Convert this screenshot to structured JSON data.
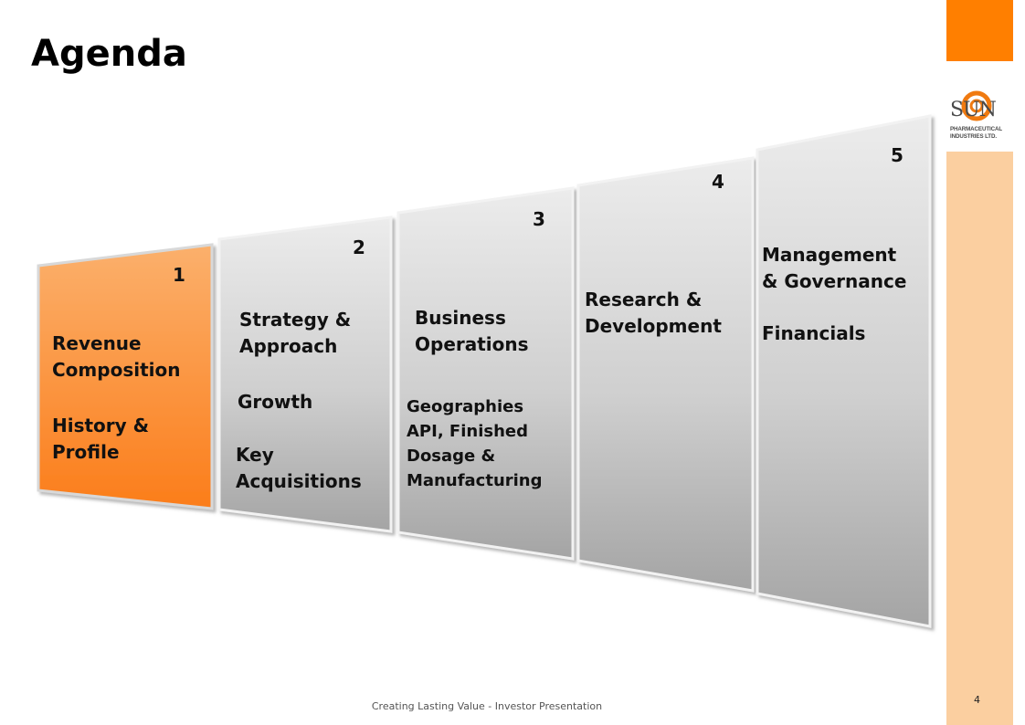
{
  "title": "Agenda",
  "logo": {
    "word": "SUN",
    "subtitle": "PHARMACEUTICAL\nINDUSTRIES LTD."
  },
  "panels": [
    {
      "number": "1",
      "lines": [
        "Revenue\nComposition",
        "History &\nProfile"
      ]
    },
    {
      "number": "2",
      "lines": [
        "Strategy &\nApproach",
        "Growth",
        "Key\nAcquisitions"
      ]
    },
    {
      "number": "3",
      "lines": [
        "Business\nOperations",
        "Geographies\nAPI, Finished\nDosage &\nManufacturing"
      ]
    },
    {
      "number": "4",
      "lines": [
        "Research &\nDevelopment"
      ]
    },
    {
      "number": "5",
      "lines": [
        "Management\n& Governance",
        "Financials"
      ]
    }
  ],
  "footer": "Creating Lasting Value - Investor Presentation",
  "page_number": "4",
  "colors": {
    "accent": "#ff7f00",
    "accent_light": "#fbcfa0",
    "panel_top": "#e6e6e6",
    "panel_bottom": "#a6a6a6"
  }
}
